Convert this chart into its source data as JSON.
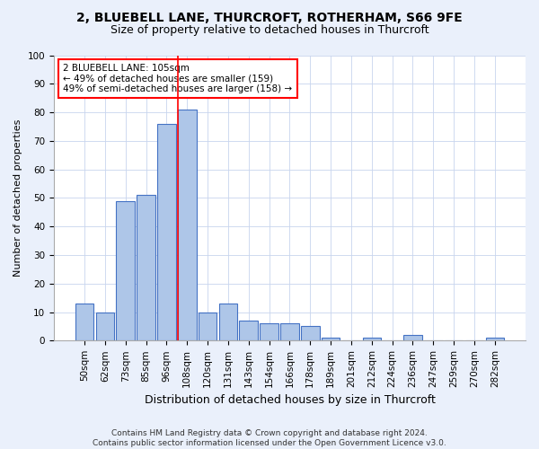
{
  "title1": "2, BLUEBELL LANE, THURCROFT, ROTHERHAM, S66 9FE",
  "title2": "Size of property relative to detached houses in Thurcroft",
  "xlabel": "Distribution of detached houses by size in Thurcroft",
  "ylabel": "Number of detached properties",
  "footer": "Contains HM Land Registry data © Crown copyright and database right 2024.\nContains public sector information licensed under the Open Government Licence v3.0.",
  "bar_labels": [
    "50sqm",
    "62sqm",
    "73sqm",
    "85sqm",
    "96sqm",
    "108sqm",
    "120sqm",
    "131sqm",
    "143sqm",
    "154sqm",
    "166sqm",
    "178sqm",
    "189sqm",
    "201sqm",
    "212sqm",
    "224sqm",
    "236sqm",
    "247sqm",
    "259sqm",
    "270sqm",
    "282sqm"
  ],
  "bar_values": [
    13,
    10,
    49,
    51,
    76,
    81,
    10,
    13,
    7,
    6,
    6,
    5,
    1,
    0,
    1,
    0,
    2,
    0,
    0,
    0,
    1
  ],
  "bar_color": "#aec6e8",
  "bar_edge_color": "#4472c4",
  "highlight_bar_index": 5,
  "highlight_color": "red",
  "annotation_text": "2 BLUEBELL LANE: 105sqm\n← 49% of detached houses are smaller (159)\n49% of semi-detached houses are larger (158) →",
  "annotation_box_color": "white",
  "annotation_box_edge": "red",
  "bg_color": "#eaf0fb",
  "plot_bg_color": "#ffffff",
  "grid_color": "#c8d4ee",
  "ylim": [
    0,
    100
  ],
  "title1_fontsize": 10,
  "title2_fontsize": 9,
  "xlabel_fontsize": 9,
  "ylabel_fontsize": 8,
  "tick_fontsize": 7.5,
  "footer_fontsize": 6.5,
  "ann_fontsize": 7.5
}
